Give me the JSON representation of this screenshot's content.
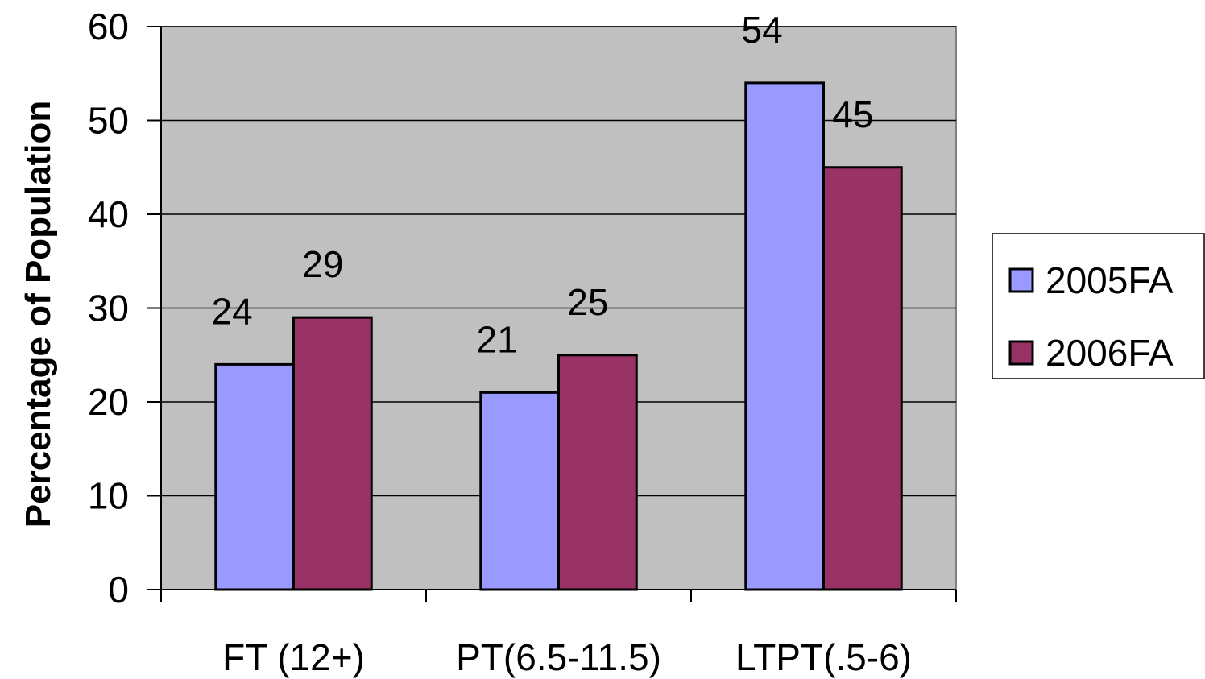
{
  "chart_data": {
    "type": "bar",
    "title": "",
    "xlabel": "",
    "ylabel": "Percentage of Population",
    "categories": [
      "FT (12+)",
      "PT(6.5-11.5)",
      "LTPT(.5-6)"
    ],
    "series": [
      {
        "name": "2005FA",
        "values": [
          24,
          21,
          54
        ],
        "color": "#9999ff"
      },
      {
        "name": "2006FA",
        "values": [
          29,
          25,
          45
        ],
        "color": "#993366"
      }
    ],
    "ylim": [
      0,
      60
    ],
    "yticks": [
      0,
      10,
      20,
      30,
      40,
      50,
      60
    ],
    "grid": true,
    "plot_background": "#c0c0c0",
    "data_labels": true,
    "legend_position": "right"
  }
}
